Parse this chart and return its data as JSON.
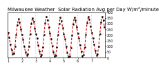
{
  "title": "Milwaukee Weather  Solar Radiation Avg per Day W/m²/minute",
  "line_color": "#cc0000",
  "marker_color": "#000000",
  "background_color": "#ffffff",
  "plot_bg_color": "#ffffff",
  "grid_color": "#bbbbbb",
  "ylim": [
    0,
    400
  ],
  "yticks": [
    0,
    50,
    100,
    150,
    200,
    250,
    300,
    350,
    400
  ],
  "values": [
    220,
    180,
    120,
    70,
    30,
    40,
    100,
    200,
    290,
    340,
    310,
    250,
    200,
    160,
    100,
    50,
    20,
    30,
    100,
    210,
    300,
    350,
    320,
    260,
    210,
    170,
    110,
    55,
    15,
    25,
    95,
    205,
    305,
    360,
    330,
    270,
    215,
    165,
    105,
    50,
    12,
    20,
    90,
    200,
    300,
    355,
    325,
    265,
    210,
    165,
    100,
    45,
    10,
    15,
    85,
    195,
    295,
    355,
    330,
    270,
    215,
    170,
    110,
    55,
    15,
    25,
    95,
    205,
    305,
    360,
    335,
    275,
    220,
    175,
    115,
    60,
    20,
    30,
    100,
    210,
    310,
    360,
    330,
    270
  ],
  "title_fontsize": 5.0,
  "tick_fontsize": 3.5,
  "linewidth": 0.8,
  "markersize": 1.5,
  "dashes": [
    3,
    2
  ],
  "n_per_year": 12,
  "n_gridlines": 7
}
